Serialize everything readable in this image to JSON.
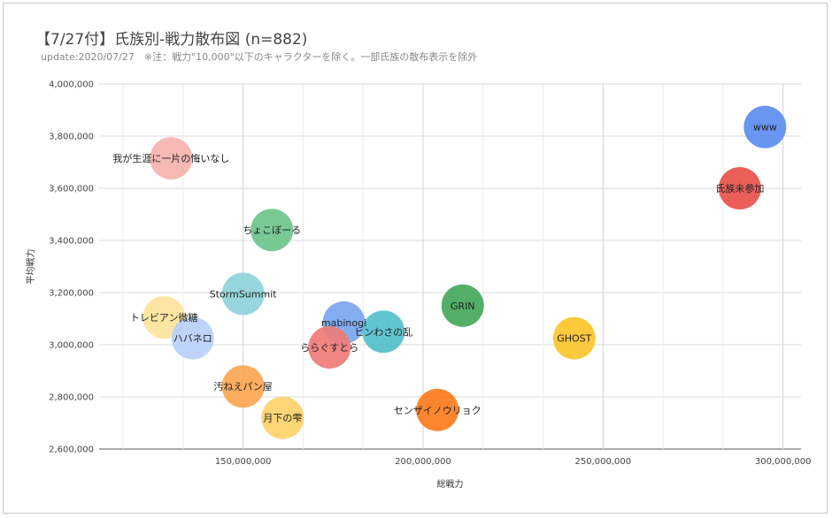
{
  "chart_data": {
    "type": "scatter",
    "title": "【7/27付】氏族別-戦力散布図 (n=882)",
    "subtitle": "update:2020/07/27　※注：戦力\"10,000\"以下のキャラクターを除く。一部氏族の散布表示を除外",
    "xlabel": "総戦力",
    "ylabel": "平均戦力",
    "xlim": [
      110000000,
      305000000
    ],
    "ylim": [
      2600000,
      4000000
    ],
    "x_ticks": [
      150000000,
      200000000,
      250000000,
      300000000
    ],
    "x_tick_labels": [
      "150,000,000",
      "200,000,000",
      "250,000,000",
      "300,000,000"
    ],
    "y_ticks": [
      2600000,
      2800000,
      3000000,
      3200000,
      3400000,
      3600000,
      3800000,
      4000000
    ],
    "y_tick_labels": [
      "2,600,000",
      "2,800,000",
      "3,000,000",
      "3,200,000",
      "3,400,000",
      "3,600,000",
      "3,800,000",
      "4,000,000"
    ],
    "grid": true,
    "points": [
      {
        "label": "www",
        "x": 295000000,
        "y": 3835000,
        "color": "#5b8def"
      },
      {
        "label": "氏族未参加",
        "x": 288000000,
        "y": 3600000,
        "color": "#e8514a"
      },
      {
        "label": "我が生涯に一片の悔いなし",
        "x": 130000000,
        "y": 3715000,
        "color": "#f6b3ae"
      },
      {
        "label": "ちょこぼーる",
        "x": 158000000,
        "y": 3440000,
        "color": "#6dc48b"
      },
      {
        "label": "StormSummit",
        "x": 150000000,
        "y": 3195000,
        "color": "#8ed3da"
      },
      {
        "label": "トレビアン微糖",
        "x": 128000000,
        "y": 3105000,
        "color": "#fde49b"
      },
      {
        "label": "ハバネロ",
        "x": 136000000,
        "y": 3025000,
        "color": "#b8d0fa"
      },
      {
        "label": "mabinogi",
        "x": 178000000,
        "y": 3085000,
        "color": "#7aa6f0"
      },
      {
        "label": "ヒンわさの乱",
        "x": 189000000,
        "y": 3050000,
        "color": "#52bfcb"
      },
      {
        "label": "ららぐすとら",
        "x": 174000000,
        "y": 2990000,
        "color": "#ef7b76"
      },
      {
        "label": "GRIN",
        "x": 211000000,
        "y": 3150000,
        "color": "#44a85a"
      },
      {
        "label": "GHOST",
        "x": 242000000,
        "y": 3025000,
        "color": "#fcc42d"
      },
      {
        "label": "汚ねえパン屋",
        "x": 150000000,
        "y": 2840000,
        "color": "#fca651"
      },
      {
        "label": "月下の雫",
        "x": 161000000,
        "y": 2720000,
        "color": "#fdd36a"
      },
      {
        "label": "センザイノウリョク",
        "x": 204000000,
        "y": 2750000,
        "color": "#fb7c1c"
      }
    ]
  }
}
